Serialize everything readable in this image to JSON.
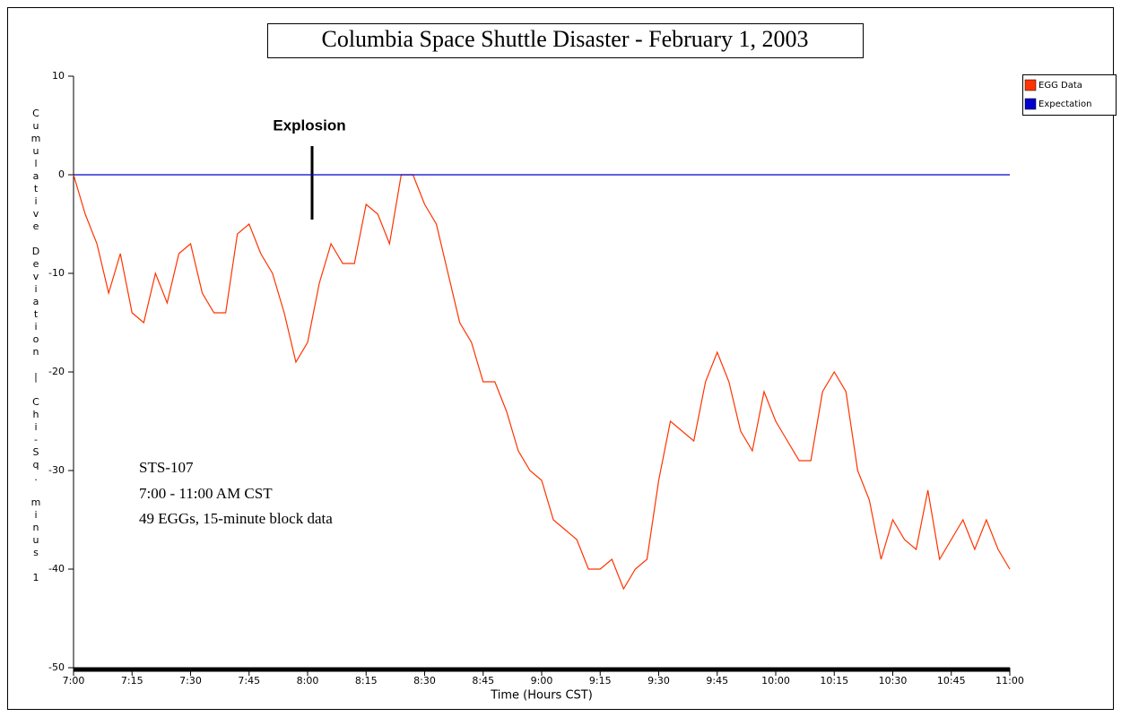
{
  "chart_data": {
    "type": "line",
    "title": "Columbia Space Shuttle Disaster - February 1, 2003",
    "x_label": "Time (Hours CST)",
    "y_label": "Cumulative Deviation | Chi-Sq. minus 1",
    "annotations": [
      "Explosion"
    ],
    "notes": [
      "STS-107",
      "7:00 - 11:00 AM CST",
      "49 EGGs, 15-minute block data"
    ],
    "legend": "right",
    "xlim": [
      7,
      11
    ],
    "ylim": [
      -50,
      10
    ],
    "yticks": [
      10,
      0,
      -10,
      -20,
      -30,
      -40,
      -50
    ],
    "xticks": [
      {
        "value": 7,
        "label": "7:00"
      },
      {
        "value": 7.25,
        "label": "7:15"
      },
      {
        "value": 7.5,
        "label": "7:30"
      },
      {
        "value": 7.75,
        "label": "7:45"
      },
      {
        "value": 8,
        "label": "8:00"
      },
      {
        "value": 8.25,
        "label": "8:15"
      },
      {
        "value": 8.5,
        "label": "8:30"
      },
      {
        "value": 8.75,
        "label": "8:45"
      },
      {
        "value": 9,
        "label": "9:00"
      },
      {
        "value": 9.25,
        "label": "9:15"
      },
      {
        "value": 9.5,
        "label": "9:30"
      },
      {
        "value": 9.75,
        "label": "9:45"
      },
      {
        "value": 10,
        "label": "10:00"
      },
      {
        "value": 10.25,
        "label": "10:15"
      },
      {
        "value": 10.5,
        "label": "10:30"
      },
      {
        "value": 10.75,
        "label": "10:45"
      },
      {
        "value": 11,
        "label": "11:00"
      }
    ],
    "x": [
      7,
      7.05,
      7.1,
      7.15,
      7.2,
      7.25,
      7.3,
      7.35,
      7.4,
      7.45,
      7.5,
      7.55,
      7.6,
      7.65,
      7.7,
      7.75,
      7.8,
      7.85,
      7.9,
      7.95,
      8,
      8.05,
      8.1,
      8.15,
      8.2,
      8.25,
      8.3,
      8.35,
      8.4,
      8.45,
      8.5,
      8.55,
      8.6,
      8.65,
      8.7,
      8.75,
      8.8,
      8.85,
      8.9,
      8.95,
      9,
      9.05,
      9.1,
      9.15,
      9.2,
      9.25,
      9.3,
      9.35,
      9.4,
      9.45,
      9.5,
      9.55,
      9.6,
      9.65,
      9.7,
      9.75,
      9.8,
      9.85,
      9.9,
      9.95,
      10,
      10.05,
      10.1,
      10.15,
      10.2,
      10.25,
      10.3,
      10.35,
      10.4,
      10.45,
      10.5,
      10.55,
      10.6,
      10.65,
      10.7,
      10.75,
      10.8,
      10.85,
      10.9,
      10.95,
      11
    ],
    "series": [
      {
        "name": "EGG Data",
        "color": "#ff3300",
        "values": [
          0,
          -4,
          -7,
          -12,
          -8,
          -14,
          -15,
          -10,
          -13,
          -8,
          -7,
          -12,
          -14,
          -14,
          -6,
          -5,
          -8,
          -10,
          -14,
          -19,
          -17,
          -11,
          -7,
          -9,
          -9,
          -3,
          -4,
          -7,
          0,
          0,
          -3,
          -5,
          -10,
          -15,
          -17,
          -21,
          -21,
          -24,
          -28,
          -30,
          -31,
          -35,
          -36,
          -37,
          -40,
          -40,
          -39,
          -42,
          -40,
          -39,
          -31,
          -25,
          -26,
          -27,
          -21,
          -18,
          -21,
          -26,
          -28,
          -22,
          -25,
          -27,
          -29,
          -29,
          -22,
          -20,
          -22,
          -30,
          -33,
          -39,
          -35,
          -37,
          -38,
          -32,
          -39,
          -37,
          -35,
          -38,
          -35,
          -38,
          -40
        ]
      },
      {
        "name": "Expectation",
        "color": "#0000cc",
        "x": [
          7,
          11
        ],
        "values": [
          0,
          0
        ]
      }
    ]
  }
}
